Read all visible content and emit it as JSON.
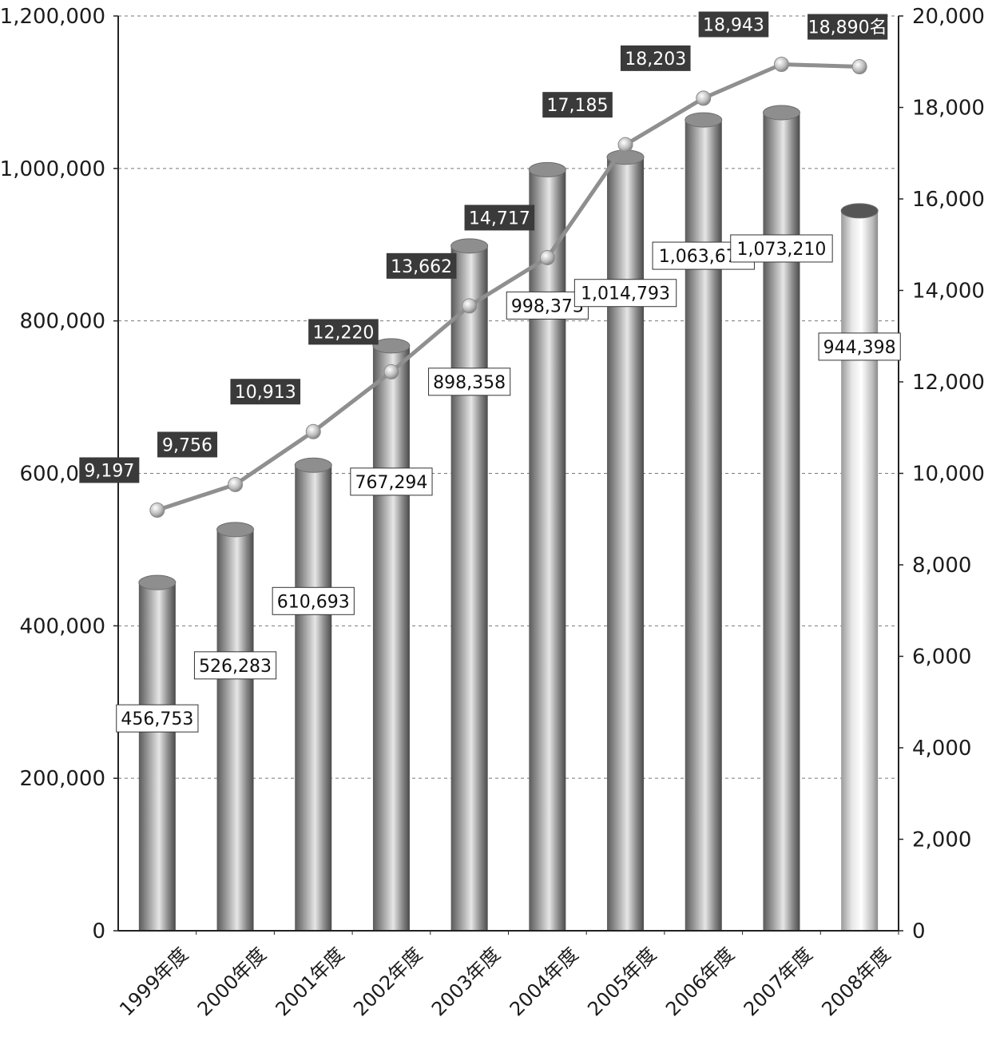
{
  "chart_data": {
    "type": "bar",
    "categories": [
      "1999年度",
      "2000年度",
      "2001年度",
      "2002年度",
      "2003年度",
      "2004年度",
      "2005年度",
      "2006年度",
      "2007年度",
      "2008年度"
    ],
    "series": [
      {
        "type": "bar",
        "axis": "left",
        "values": [
          456753,
          526283,
          610693,
          767294,
          898358,
          998373,
          1014793,
          1063673,
          1073210,
          944398
        ],
        "labels": [
          "456,753",
          "526,283",
          "610,693",
          "767,294",
          "898,358",
          "998,373",
          "1,014,793",
          "1,063,673",
          "1,073,210",
          "944,398"
        ]
      },
      {
        "type": "line",
        "axis": "right",
        "values": [
          9197,
          9756,
          10913,
          12220,
          13662,
          14717,
          17185,
          18203,
          18943,
          18890
        ],
        "labels": [
          "9,197",
          "9,756",
          "10,913",
          "12,220",
          "13,662",
          "14,717",
          "17,185",
          "18,203",
          "18,943",
          "18,890名"
        ]
      }
    ],
    "y_left": {
      "ylim": [
        0,
        1200000
      ],
      "ticks": [
        "0",
        "200,000",
        "400,000",
        "600,000",
        "800,000",
        "1,000,000",
        "1,200,000"
      ]
    },
    "y_right": {
      "ylim": [
        0,
        20000
      ],
      "ticks": [
        "0",
        "2,000",
        "4,000",
        "6,000",
        "8,000",
        "10,000",
        "12,000",
        "14,000",
        "16,000",
        "18,000",
        "20,000"
      ]
    },
    "grid": "horizontal dashed",
    "colors": {
      "bar_dark": "#5a5a5a",
      "bar_light": "#f2f2f2",
      "bar_last_light": "#ffffff",
      "line": "#8f8f8f",
      "marker": "#bdbdbd",
      "label_bg_dark": "#3a3a3a",
      "label_border": "#333333"
    }
  }
}
